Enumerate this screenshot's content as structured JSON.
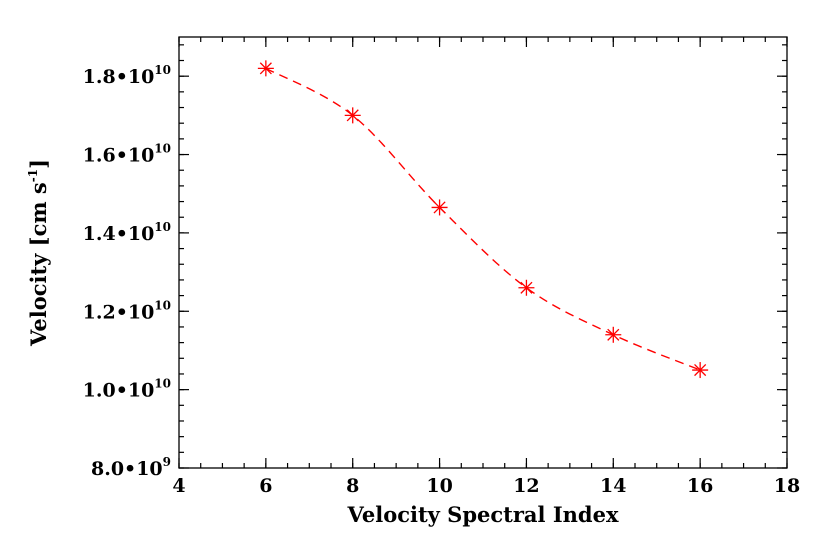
{
  "chart_data": {
    "type": "line",
    "title": "",
    "xlabel": "Velocity Spectral Index",
    "ylabel_main": "Velocity [cm s",
    "ylabel_sup": "-1",
    "ylabel_close": "]",
    "xlim": [
      4,
      18
    ],
    "ylim": [
      8000000000,
      19000000000
    ],
    "x_ticks": [
      4,
      6,
      8,
      10,
      12,
      14,
      16,
      18
    ],
    "x_tick_labels": [
      "4",
      "6",
      "8",
      "10",
      "12",
      "14",
      "16",
      "18"
    ],
    "x_minor_step": 0.5,
    "y_ticks": [
      8000000000,
      10000000000,
      12000000000,
      14000000000,
      16000000000,
      18000000000
    ],
    "y_tick_labels": [
      {
        "mantissa": "8.0•10",
        "exp": "9"
      },
      {
        "mantissa": "1.0•10",
        "exp": "10"
      },
      {
        "mantissa": "1.2•10",
        "exp": "10"
      },
      {
        "mantissa": "1.4•10",
        "exp": "10"
      },
      {
        "mantissa": "1.6•10",
        "exp": "10"
      },
      {
        "mantissa": "1.8•10",
        "exp": "10"
      }
    ],
    "y_minor_step": 400000000,
    "grid": false,
    "series": [
      {
        "x": [
          6,
          8,
          10,
          12,
          14,
          16
        ],
        "values": [
          18200000000,
          17000000000,
          14650000000,
          12600000000,
          11400000000,
          10500000000
        ],
        "color": "#ff0000",
        "line_style": "dashed",
        "marker": "asterisk"
      }
    ]
  }
}
